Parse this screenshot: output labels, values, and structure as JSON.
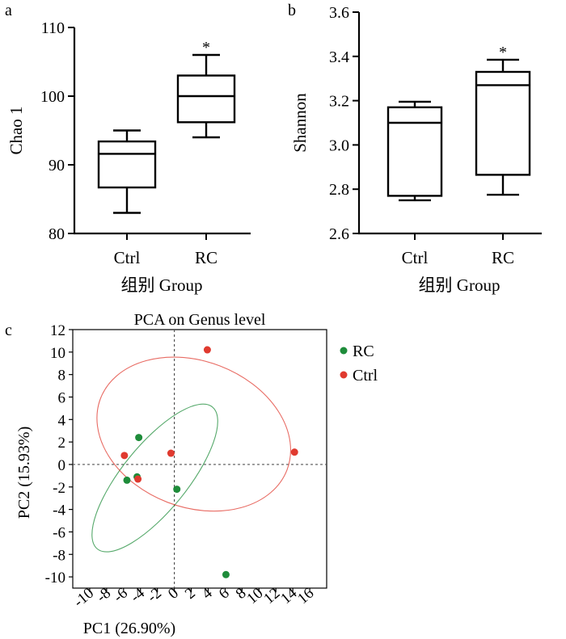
{
  "panels": {
    "a": "a",
    "b": "b",
    "c": "c"
  },
  "chart_data": [
    {
      "type": "box",
      "panel": "a",
      "title": "",
      "xlabel": "组别 Group",
      "ylabel": "Chao 1",
      "ylim": [
        80,
        110
      ],
      "yticks": [
        80,
        90,
        100,
        110
      ],
      "categories": [
        "Ctrl",
        "RC"
      ],
      "boxes": [
        {
          "category": "Ctrl",
          "min": 83.0,
          "q1": 86.7,
          "median": 91.6,
          "q3": 93.4,
          "max": 95.0,
          "annotation": ""
        },
        {
          "category": "RC",
          "min": 94.0,
          "q1": 96.2,
          "median": 100.0,
          "q3": 103.0,
          "max": 106.0,
          "annotation": "*"
        }
      ]
    },
    {
      "type": "box",
      "panel": "b",
      "title": "",
      "xlabel": "组别 Group",
      "ylabel": "Shannon",
      "ylim": [
        2.6,
        3.6
      ],
      "yticks": [
        "2.6",
        "2.8",
        "3.0",
        "3.2",
        "3.4",
        "3.6"
      ],
      "categories": [
        "Ctrl",
        "RC"
      ],
      "boxes": [
        {
          "category": "Ctrl",
          "min": 2.75,
          "q1": 2.77,
          "median": 3.1,
          "q3": 3.17,
          "max": 3.195,
          "annotation": ""
        },
        {
          "category": "RC",
          "min": 2.775,
          "q1": 2.865,
          "median": 3.27,
          "q3": 3.33,
          "max": 3.385,
          "annotation": "*"
        }
      ]
    },
    {
      "type": "scatter",
      "panel": "c",
      "title": "PCA on Genus level",
      "xlabel": "PC1 (26.90%)",
      "ylabel": "PC2 (15.93%)",
      "xlim": [
        -12,
        18
      ],
      "ylim": [
        -11,
        12
      ],
      "xticks": [
        -10,
        -8,
        -6,
        -4,
        -2,
        0,
        2,
        4,
        6,
        8,
        10,
        12,
        14,
        16
      ],
      "yticks": [
        -10,
        -8,
        -6,
        -4,
        -2,
        0,
        2,
        4,
        6,
        8,
        10,
        12
      ],
      "legend": "top-right",
      "series": [
        {
          "name": "RC",
          "color": "#1e8c3a",
          "points": [
            [
              -4.2,
              2.4
            ],
            [
              -5.6,
              -1.4
            ],
            [
              -4.4,
              -1.1
            ],
            [
              0.3,
              -2.2
            ],
            [
              6.1,
              -9.8
            ]
          ],
          "ellipse": {
            "cx": -2.3,
            "cy": -1.2,
            "rx": 10.8,
            "ry": 2.9,
            "angle_deg": -51
          }
        },
        {
          "name": "Ctrl",
          "color": "#e03a2f",
          "points": [
            [
              3.9,
              10.2
            ],
            [
              14.2,
              1.1
            ],
            [
              -0.4,
              1.0
            ],
            [
              -5.9,
              0.8
            ],
            [
              -4.3,
              -1.3
            ]
          ],
          "ellipse": {
            "cx": 2.3,
            "cy": 2.7,
            "rx": 11.8,
            "ry": 6.5,
            "angle_deg": 21
          }
        }
      ]
    }
  ]
}
